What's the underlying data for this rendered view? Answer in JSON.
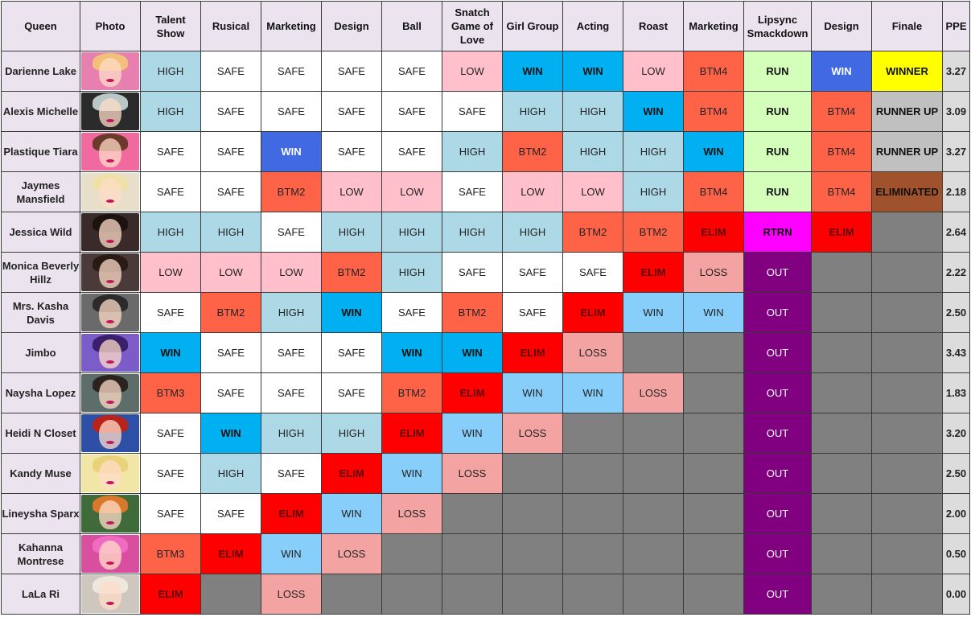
{
  "headers": [
    {
      "key": "queen",
      "label": "Queen"
    },
    {
      "key": "photo",
      "label": "Photo"
    },
    {
      "key": "talent",
      "label": "Talent Show"
    },
    {
      "key": "rusical",
      "label": "Rusical"
    },
    {
      "key": "marketing1",
      "label": "Marketing"
    },
    {
      "key": "design1",
      "label": "Design"
    },
    {
      "key": "ball",
      "label": "Ball"
    },
    {
      "key": "snatch",
      "label": "Snatch Game of Love"
    },
    {
      "key": "girlgroup",
      "label": "Girl Group"
    },
    {
      "key": "acting",
      "label": "Acting"
    },
    {
      "key": "roast",
      "label": "Roast"
    },
    {
      "key": "marketing2",
      "label": "Marketing"
    },
    {
      "key": "lipsync",
      "label": "Lipsync Smackdown"
    },
    {
      "key": "design2",
      "label": "Design"
    },
    {
      "key": "finale",
      "label": "Finale"
    },
    {
      "key": "ppe",
      "label": "PPE"
    }
  ],
  "status_colors": {
    "WIN_BLUE": "#00b0f0",
    "WIN_ROYAL": "#4169e1",
    "WIN_LIGHT": "#87cefa",
    "HIGH": "#add8e6",
    "SAFE": "#ffffff",
    "LOW": "#ffc0cb",
    "BTM": "#ff6347",
    "ELIM": "#ff0000",
    "LOSS": "#f4a3a3",
    "RUN": "#d4ffbb",
    "RTRN": "#ff00ff",
    "OUT": "#800080",
    "WINNER": "#ffff00",
    "RUNNER_UP": "#c0c0c0",
    "ELIMINATED": "#a0522d",
    "EMPTY": "#808080"
  },
  "queens": [
    {
      "name": "Darienne Lake",
      "photo": {
        "bg": "#e87fb1",
        "hair": "#f2c07a"
      },
      "ppe": "3.27",
      "results": [
        {
          "text": "HIGH",
          "style": "HIGH"
        },
        {
          "text": "SAFE",
          "style": "SAFE"
        },
        {
          "text": "SAFE",
          "style": "SAFE"
        },
        {
          "text": "SAFE",
          "style": "SAFE"
        },
        {
          "text": "SAFE",
          "style": "SAFE"
        },
        {
          "text": "LOW",
          "style": "LOW"
        },
        {
          "text": "WIN",
          "style": "WIN_BLUE",
          "bold": true
        },
        {
          "text": "WIN",
          "style": "WIN_BLUE",
          "bold": true
        },
        {
          "text": "LOW",
          "style": "LOW"
        },
        {
          "text": "BTM4",
          "style": "BTM"
        },
        {
          "text": "RUN",
          "style": "RUN",
          "bold": true
        },
        {
          "text": "WIN",
          "style": "WIN_ROYAL",
          "bold": true,
          "light": true
        },
        {
          "text": "WINNER",
          "style": "WINNER",
          "bold": true
        }
      ]
    },
    {
      "name": "Alexis Michelle",
      "photo": {
        "bg": "#2b2b2b",
        "hair": "#b9c7c7"
      },
      "ppe": "3.09",
      "results": [
        {
          "text": "HIGH",
          "style": "HIGH"
        },
        {
          "text": "SAFE",
          "style": "SAFE"
        },
        {
          "text": "SAFE",
          "style": "SAFE"
        },
        {
          "text": "SAFE",
          "style": "SAFE"
        },
        {
          "text": "SAFE",
          "style": "SAFE"
        },
        {
          "text": "SAFE",
          "style": "SAFE"
        },
        {
          "text": "HIGH",
          "style": "HIGH"
        },
        {
          "text": "HIGH",
          "style": "HIGH"
        },
        {
          "text": "WIN",
          "style": "WIN_BLUE",
          "bold": true
        },
        {
          "text": "BTM4",
          "style": "BTM"
        },
        {
          "text": "RUN",
          "style": "RUN",
          "bold": true
        },
        {
          "text": "BTM4",
          "style": "BTM"
        },
        {
          "text": "RUNNER UP",
          "style": "RUNNER_UP",
          "bold": true
        }
      ]
    },
    {
      "name": "Plastique Tiara",
      "photo": {
        "bg": "#f06aa0",
        "hair": "#6b3a2a"
      },
      "ppe": "3.27",
      "results": [
        {
          "text": "SAFE",
          "style": "SAFE"
        },
        {
          "text": "SAFE",
          "style": "SAFE"
        },
        {
          "text": "WIN",
          "style": "WIN_ROYAL",
          "bold": true,
          "light": true
        },
        {
          "text": "SAFE",
          "style": "SAFE"
        },
        {
          "text": "SAFE",
          "style": "SAFE"
        },
        {
          "text": "HIGH",
          "style": "HIGH"
        },
        {
          "text": "BTM2",
          "style": "BTM"
        },
        {
          "text": "HIGH",
          "style": "HIGH"
        },
        {
          "text": "HIGH",
          "style": "HIGH"
        },
        {
          "text": "WIN",
          "style": "WIN_BLUE",
          "bold": true
        },
        {
          "text": "RUN",
          "style": "RUN",
          "bold": true
        },
        {
          "text": "BTM4",
          "style": "BTM"
        },
        {
          "text": "RUNNER UP",
          "style": "RUNNER_UP",
          "bold": true
        }
      ]
    },
    {
      "name": "Jaymes Mansfield",
      "photo": {
        "bg": "#e7dfc9",
        "hair": "#efe0a8"
      },
      "ppe": "2.18",
      "results": [
        {
          "text": "SAFE",
          "style": "SAFE"
        },
        {
          "text": "SAFE",
          "style": "SAFE"
        },
        {
          "text": "BTM2",
          "style": "BTM"
        },
        {
          "text": "LOW",
          "style": "LOW"
        },
        {
          "text": "LOW",
          "style": "LOW"
        },
        {
          "text": "SAFE",
          "style": "SAFE"
        },
        {
          "text": "LOW",
          "style": "LOW"
        },
        {
          "text": "LOW",
          "style": "LOW"
        },
        {
          "text": "HIGH",
          "style": "HIGH"
        },
        {
          "text": "BTM4",
          "style": "BTM"
        },
        {
          "text": "RUN",
          "style": "RUN",
          "bold": true
        },
        {
          "text": "BTM4",
          "style": "BTM"
        },
        {
          "text": "ELIMINATED",
          "style": "ELIMINATED",
          "bold": true
        }
      ]
    },
    {
      "name": "Jessica Wild",
      "photo": {
        "bg": "#3a2a2a",
        "hair": "#1c1210"
      },
      "ppe": "2.64",
      "results": [
        {
          "text": "HIGH",
          "style": "HIGH"
        },
        {
          "text": "HIGH",
          "style": "HIGH"
        },
        {
          "text": "SAFE",
          "style": "SAFE"
        },
        {
          "text": "HIGH",
          "style": "HIGH"
        },
        {
          "text": "HIGH",
          "style": "HIGH"
        },
        {
          "text": "HIGH",
          "style": "HIGH"
        },
        {
          "text": "HIGH",
          "style": "HIGH"
        },
        {
          "text": "BTM2",
          "style": "BTM"
        },
        {
          "text": "BTM2",
          "style": "BTM"
        },
        {
          "text": "ELIM",
          "style": "ELIM",
          "bold": true
        },
        {
          "text": "RTRN",
          "style": "RTRN",
          "bold": true
        },
        {
          "text": "ELIM",
          "style": "ELIM",
          "bold": true
        },
        {
          "text": "",
          "style": "EMPTY"
        }
      ]
    },
    {
      "name": "Monica Beverly Hillz",
      "photo": {
        "bg": "#4a3a3a",
        "hair": "#2a1a14"
      },
      "ppe": "2.22",
      "results": [
        {
          "text": "LOW",
          "style": "LOW"
        },
        {
          "text": "LOW",
          "style": "LOW"
        },
        {
          "text": "LOW",
          "style": "LOW"
        },
        {
          "text": "BTM2",
          "style": "BTM"
        },
        {
          "text": "HIGH",
          "style": "HIGH"
        },
        {
          "text": "SAFE",
          "style": "SAFE"
        },
        {
          "text": "SAFE",
          "style": "SAFE"
        },
        {
          "text": "SAFE",
          "style": "SAFE"
        },
        {
          "text": "ELIM",
          "style": "ELIM",
          "bold": true
        },
        {
          "text": "LOSS",
          "style": "LOSS"
        },
        {
          "text": "OUT",
          "style": "OUT",
          "light": true
        },
        {
          "text": "",
          "style": "EMPTY"
        },
        {
          "text": "",
          "style": "EMPTY"
        }
      ]
    },
    {
      "name": "Mrs. Kasha Davis",
      "photo": {
        "bg": "#6a6a6a",
        "hair": "#2b2b2b"
      },
      "ppe": "2.50",
      "results": [
        {
          "text": "SAFE",
          "style": "SAFE"
        },
        {
          "text": "BTM2",
          "style": "BTM"
        },
        {
          "text": "HIGH",
          "style": "HIGH"
        },
        {
          "text": "WIN",
          "style": "WIN_BLUE",
          "bold": true
        },
        {
          "text": "SAFE",
          "style": "SAFE"
        },
        {
          "text": "BTM2",
          "style": "BTM"
        },
        {
          "text": "SAFE",
          "style": "SAFE"
        },
        {
          "text": "ELIM",
          "style": "ELIM",
          "bold": true
        },
        {
          "text": "WIN",
          "style": "WIN_LIGHT"
        },
        {
          "text": "WIN",
          "style": "WIN_LIGHT"
        },
        {
          "text": "OUT",
          "style": "OUT",
          "light": true
        },
        {
          "text": "",
          "style": "EMPTY"
        },
        {
          "text": "",
          "style": "EMPTY"
        }
      ]
    },
    {
      "name": "Jimbo",
      "photo": {
        "bg": "#7b5cc9",
        "hair": "#3a1f6a"
      },
      "ppe": "3.43",
      "results": [
        {
          "text": "WIN",
          "style": "WIN_BLUE",
          "bold": true
        },
        {
          "text": "SAFE",
          "style": "SAFE"
        },
        {
          "text": "SAFE",
          "style": "SAFE"
        },
        {
          "text": "SAFE",
          "style": "SAFE"
        },
        {
          "text": "WIN",
          "style": "WIN_BLUE",
          "bold": true
        },
        {
          "text": "WIN",
          "style": "WIN_BLUE",
          "bold": true
        },
        {
          "text": "ELIM",
          "style": "ELIM",
          "bold": true
        },
        {
          "text": "LOSS",
          "style": "LOSS"
        },
        {
          "text": "",
          "style": "EMPTY"
        },
        {
          "text": "",
          "style": "EMPTY"
        },
        {
          "text": "OUT",
          "style": "OUT",
          "light": true
        },
        {
          "text": "",
          "style": "EMPTY"
        },
        {
          "text": "",
          "style": "EMPTY"
        }
      ]
    },
    {
      "name": "Naysha Lopez",
      "photo": {
        "bg": "#5d6d6a",
        "hair": "#2a2320"
      },
      "ppe": "1.83",
      "results": [
        {
          "text": "BTM3",
          "style": "BTM"
        },
        {
          "text": "SAFE",
          "style": "SAFE"
        },
        {
          "text": "SAFE",
          "style": "SAFE"
        },
        {
          "text": "SAFE",
          "style": "SAFE"
        },
        {
          "text": "BTM2",
          "style": "BTM"
        },
        {
          "text": "ELIM",
          "style": "ELIM",
          "bold": true
        },
        {
          "text": "WIN",
          "style": "WIN_LIGHT"
        },
        {
          "text": "WIN",
          "style": "WIN_LIGHT"
        },
        {
          "text": "LOSS",
          "style": "LOSS"
        },
        {
          "text": "",
          "style": "EMPTY"
        },
        {
          "text": "OUT",
          "style": "OUT",
          "light": true
        },
        {
          "text": "",
          "style": "EMPTY"
        },
        {
          "text": "",
          "style": "EMPTY"
        }
      ]
    },
    {
      "name": "Heidi N Closet",
      "photo": {
        "bg": "#2d4fa6",
        "hair": "#b8241c"
      },
      "ppe": "3.20",
      "results": [
        {
          "text": "SAFE",
          "style": "SAFE"
        },
        {
          "text": "WIN",
          "style": "WIN_BLUE",
          "bold": true
        },
        {
          "text": "HIGH",
          "style": "HIGH"
        },
        {
          "text": "HIGH",
          "style": "HIGH"
        },
        {
          "text": "ELIM",
          "style": "ELIM",
          "bold": true
        },
        {
          "text": "WIN",
          "style": "WIN_LIGHT"
        },
        {
          "text": "LOSS",
          "style": "LOSS"
        },
        {
          "text": "",
          "style": "EMPTY"
        },
        {
          "text": "",
          "style": "EMPTY"
        },
        {
          "text": "",
          "style": "EMPTY"
        },
        {
          "text": "OUT",
          "style": "OUT",
          "light": true
        },
        {
          "text": "",
          "style": "EMPTY"
        },
        {
          "text": "",
          "style": "EMPTY"
        }
      ]
    },
    {
      "name": "Kandy Muse",
      "photo": {
        "bg": "#f2e6a6",
        "hair": "#e9d27a"
      },
      "ppe": "2.50",
      "results": [
        {
          "text": "SAFE",
          "style": "SAFE"
        },
        {
          "text": "HIGH",
          "style": "HIGH"
        },
        {
          "text": "SAFE",
          "style": "SAFE"
        },
        {
          "text": "ELIM",
          "style": "ELIM",
          "bold": true
        },
        {
          "text": "WIN",
          "style": "WIN_LIGHT"
        },
        {
          "text": "LOSS",
          "style": "LOSS"
        },
        {
          "text": "",
          "style": "EMPTY"
        },
        {
          "text": "",
          "style": "EMPTY"
        },
        {
          "text": "",
          "style": "EMPTY"
        },
        {
          "text": "",
          "style": "EMPTY"
        },
        {
          "text": "OUT",
          "style": "OUT",
          "light": true
        },
        {
          "text": "",
          "style": "EMPTY"
        },
        {
          "text": "",
          "style": "EMPTY"
        }
      ]
    },
    {
      "name": "Lineysha Sparx",
      "photo": {
        "bg": "#3f6b3a",
        "hair": "#d9772b"
      },
      "ppe": "2.00",
      "results": [
        {
          "text": "SAFE",
          "style": "SAFE"
        },
        {
          "text": "SAFE",
          "style": "SAFE"
        },
        {
          "text": "ELIM",
          "style": "ELIM",
          "bold": true
        },
        {
          "text": "WIN",
          "style": "WIN_LIGHT"
        },
        {
          "text": "LOSS",
          "style": "LOSS"
        },
        {
          "text": "",
          "style": "EMPTY"
        },
        {
          "text": "",
          "style": "EMPTY"
        },
        {
          "text": "",
          "style": "EMPTY"
        },
        {
          "text": "",
          "style": "EMPTY"
        },
        {
          "text": "",
          "style": "EMPTY"
        },
        {
          "text": "OUT",
          "style": "OUT",
          "light": true
        },
        {
          "text": "",
          "style": "EMPTY"
        },
        {
          "text": "",
          "style": "EMPTY"
        }
      ]
    },
    {
      "name": "Kahanna Montrese",
      "photo": {
        "bg": "#d94fa0",
        "hair": "#f06ac2"
      },
      "ppe": "0.50",
      "results": [
        {
          "text": "BTM3",
          "style": "BTM"
        },
        {
          "text": "ELIM",
          "style": "ELIM",
          "bold": true
        },
        {
          "text": "WIN",
          "style": "WIN_LIGHT"
        },
        {
          "text": "LOSS",
          "style": "LOSS"
        },
        {
          "text": "",
          "style": "EMPTY"
        },
        {
          "text": "",
          "style": "EMPTY"
        },
        {
          "text": "",
          "style": "EMPTY"
        },
        {
          "text": "",
          "style": "EMPTY"
        },
        {
          "text": "",
          "style": "EMPTY"
        },
        {
          "text": "",
          "style": "EMPTY"
        },
        {
          "text": "OUT",
          "style": "OUT",
          "light": true
        },
        {
          "text": "",
          "style": "EMPTY"
        },
        {
          "text": "",
          "style": "EMPTY"
        }
      ]
    },
    {
      "name": "LaLa Ri",
      "photo": {
        "bg": "#cfc6c0",
        "hair": "#efe7dd"
      },
      "ppe": "0.00",
      "results": [
        {
          "text": "ELIM",
          "style": "ELIM",
          "bold": true
        },
        {
          "text": "",
          "style": "EMPTY"
        },
        {
          "text": "LOSS",
          "style": "LOSS"
        },
        {
          "text": "",
          "style": "EMPTY"
        },
        {
          "text": "",
          "style": "EMPTY"
        },
        {
          "text": "",
          "style": "EMPTY"
        },
        {
          "text": "",
          "style": "EMPTY"
        },
        {
          "text": "",
          "style": "EMPTY"
        },
        {
          "text": "",
          "style": "EMPTY"
        },
        {
          "text": "",
          "style": "EMPTY"
        },
        {
          "text": "OUT",
          "style": "OUT",
          "light": true
        },
        {
          "text": "",
          "style": "EMPTY"
        },
        {
          "text": "",
          "style": "EMPTY"
        }
      ]
    }
  ]
}
